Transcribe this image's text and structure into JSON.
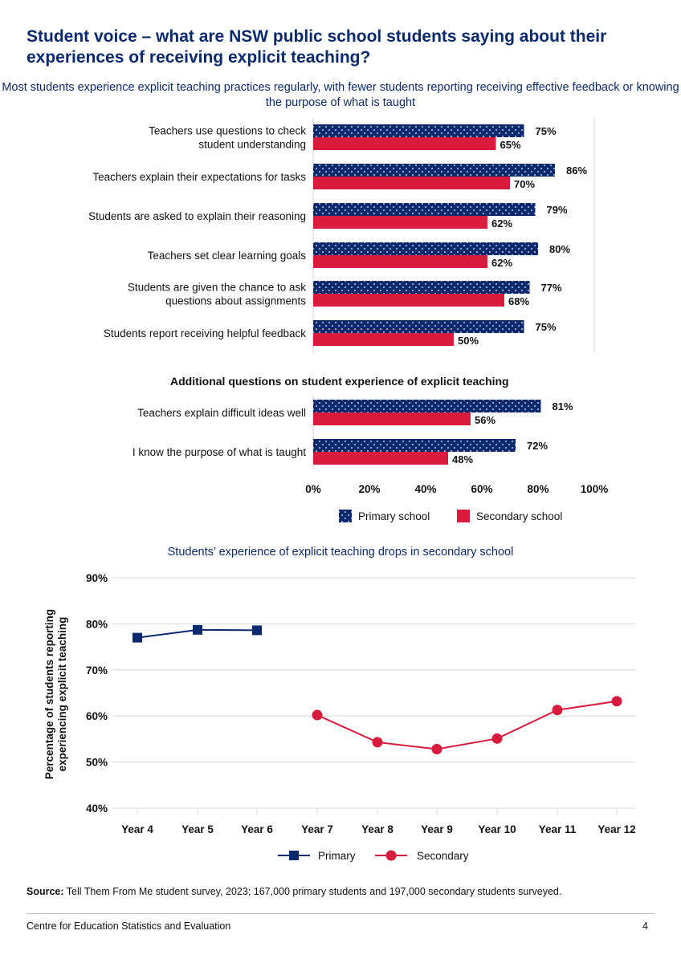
{
  "page": {
    "title": "Student voice – what are NSW public school students saying about their experiences of receiving explicit teaching?",
    "source_label": "Source:",
    "source_text": " Tell Them From Me student survey, 2023; 167,000 primary students and 197,000 secondary students surveyed.",
    "footer_left": "Centre for Education Statistics and Evaluation",
    "footer_page": "4"
  },
  "colors": {
    "primary": "#0b2a6e",
    "secondary": "#d81b3c",
    "grid": "#d9d9d9"
  },
  "chart_data": [
    {
      "type": "bar",
      "orientation": "horizontal",
      "title": "Most students experience explicit teaching practices regularly, with fewer students reporting receiving effective feedback or knowing the purpose of what is taught",
      "section_heading": "Additional questions on student experience of explicit teaching",
      "categories": [
        [
          "Teachers use questions to check",
          "student understanding"
        ],
        [
          "Teachers explain their expectations for tasks"
        ],
        [
          "Students are asked to explain their reasoning"
        ],
        [
          "Teachers set clear learning goals"
        ],
        [
          "Students are given the chance to ask",
          "questions about assignments"
        ],
        [
          "Students report receiving helpful feedback"
        ],
        [
          "Teachers explain difficult ideas well"
        ],
        [
          "I know the purpose of what is taught"
        ]
      ],
      "series": [
        {
          "name": "Primary school",
          "values": [
            75,
            86,
            79,
            80,
            77,
            75,
            81,
            72
          ]
        },
        {
          "name": "Secondary school",
          "values": [
            65,
            70,
            62,
            62,
            68,
            50,
            56,
            48
          ]
        }
      ],
      "xlim": [
        0,
        100
      ],
      "xticks": [
        "0%",
        "20%",
        "40%",
        "60%",
        "80%",
        "100%"
      ],
      "value_suffix": "%",
      "legend_position": "bottom"
    },
    {
      "type": "line",
      "title": "Students’ experience of explicit teaching drops in secondary school",
      "ylabel": [
        "Percentage of students reporting",
        "experiencing explicit teaching"
      ],
      "categories": [
        "Year 4",
        "Year 5",
        "Year 6",
        "Year 7",
        "Year 8",
        "Year 9",
        "Year 10",
        "Year 11",
        "Year 12"
      ],
      "series": [
        {
          "name": "Primary",
          "x": [
            "Year 4",
            "Year 5",
            "Year 6"
          ],
          "values": [
            77,
            78.7,
            78.6
          ]
        },
        {
          "name": "Secondary",
          "x": [
            "Year 7",
            "Year 8",
            "Year 9",
            "Year 10",
            "Year 11",
            "Year 12"
          ],
          "values": [
            60.2,
            54.3,
            52.8,
            55.1,
            61.3,
            63.2
          ]
        }
      ],
      "ylim": [
        40,
        90
      ],
      "yticks": [
        "40%",
        "50%",
        "60%",
        "70%",
        "80%",
        "90%"
      ],
      "grid": true,
      "legend_position": "bottom"
    }
  ]
}
